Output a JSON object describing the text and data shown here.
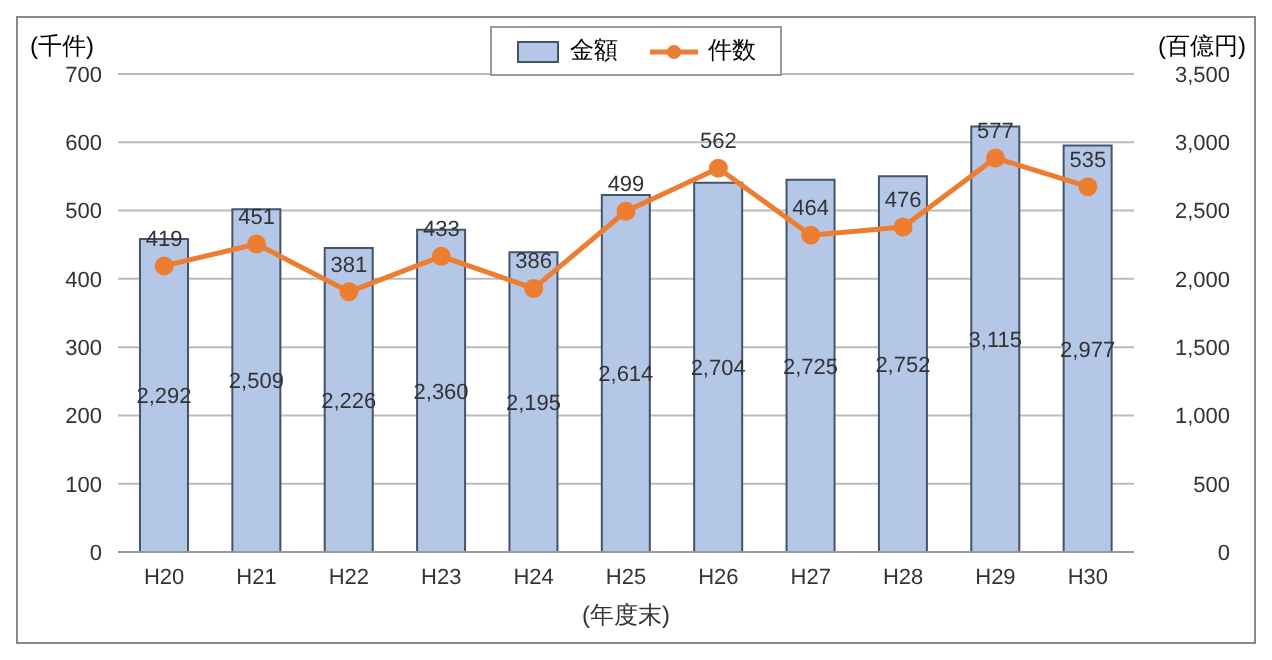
{
  "chart_data": {
    "type": "bar",
    "categories": [
      "H20",
      "H21",
      "H22",
      "H23",
      "H24",
      "H25",
      "H26",
      "H27",
      "H28",
      "H29",
      "H30"
    ],
    "series": [
      {
        "name": "金額",
        "axis": "y2",
        "color": "#b4c7e7",
        "values": [
          2292,
          2509,
          2226,
          2360,
          2195,
          2614,
          2704,
          2725,
          2752,
          3115,
          2977
        ],
        "value_labels": [
          "2,292",
          "2,509",
          "2,226",
          "2,360",
          "2,195",
          "2,614",
          "2,704",
          "2,725",
          "2,752",
          "3,115",
          "2,977"
        ]
      },
      {
        "name": "件数",
        "type": "line",
        "color": "#ed7d31",
        "values": [
          419,
          451,
          381,
          433,
          386,
          499,
          562,
          464,
          476,
          577,
          535
        ]
      }
    ],
    "ylabel": "(千件)",
    "y2label": "(百億円)",
    "xlabel": "(年度末)",
    "ylim": [
      0,
      700
    ],
    "yticks": [
      0,
      100,
      200,
      300,
      400,
      500,
      600,
      700
    ],
    "y2lim": [
      0,
      3500
    ],
    "y2ticks": [
      0,
      500,
      {
        "value": 1000,
        "label": "1,000"
      },
      {
        "value": 1500,
        "label": "1,500"
      },
      {
        "value": 2000,
        "label": "2,000"
      },
      {
        "value": 2500,
        "label": "2,500"
      },
      {
        "value": 3000,
        "label": "3,000"
      },
      {
        "value": 3500,
        "label": "3,500"
      }
    ],
    "grid": "y",
    "legend": "top",
    "marker": "circle",
    "data_labels": true
  }
}
